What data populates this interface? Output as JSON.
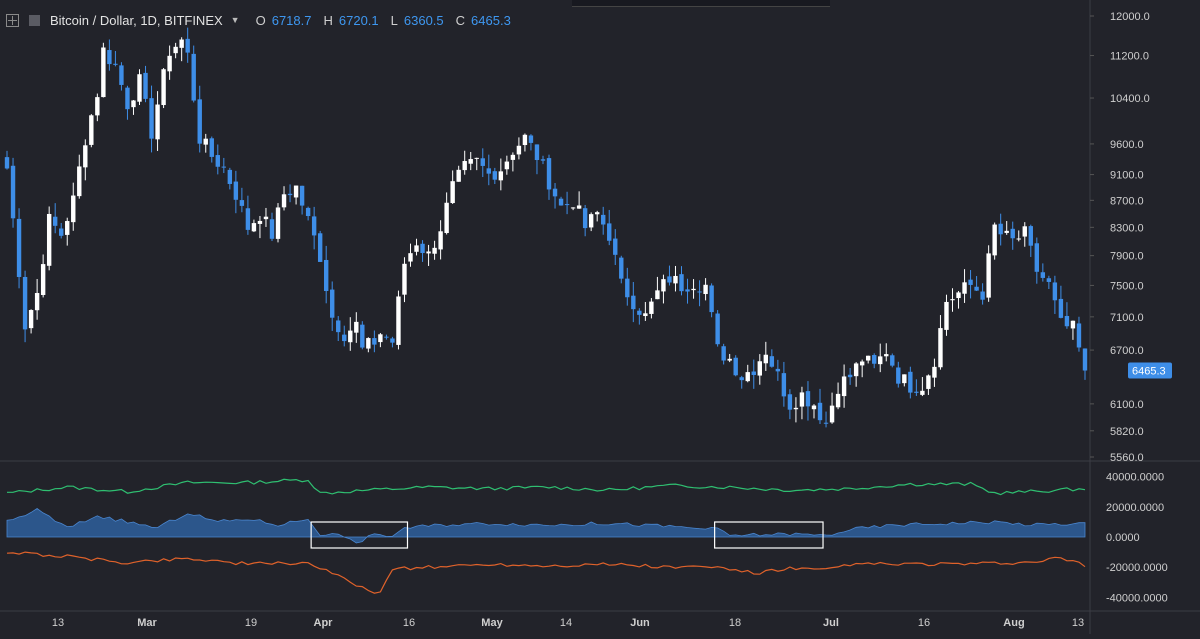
{
  "legend": {
    "symbol": "Bitcoin / Dollar, 1D, BITFINEX",
    "open_label": "O",
    "open": "6718.7",
    "high_label": "H",
    "high": "6720.1",
    "low_label": "L",
    "low": "6360.5",
    "close_label": "C",
    "close": "6465.3"
  },
  "colors": {
    "background": "#22232a",
    "up_candle": "#ffffff",
    "down_candle": "#3e8ee8",
    "area": "#2e5f9c",
    "green_line": "#2fbf71",
    "orange_line": "#e0622a",
    "text": "#d6d6d6",
    "accent": "#3e97f0"
  },
  "chart_data": [
    {
      "type": "candlestick",
      "title": "Bitcoin / Dollar, 1D, BITFINEX",
      "x_tick_labels": [
        "13",
        "Mar",
        "19",
        "Apr",
        "16",
        "May",
        "14",
        "Jun",
        "18",
        "Jul",
        "16",
        "Aug",
        "13"
      ],
      "y_ticks": [
        12000.0,
        11200.0,
        10400.0,
        9600.0,
        9100.0,
        8700.0,
        8300.0,
        7900.0,
        7500.0,
        7100.0,
        6700.0,
        6100.0,
        5820.0,
        5560.0
      ],
      "y_tick_labels": [
        "12000.0",
        "11200.0",
        "10400.0",
        "9600.0",
        "9100.0",
        "8700.0",
        "8300.0",
        "7900.0",
        "7500.0",
        "7100.0",
        "6700.0",
        "6100.0",
        "5820.0",
        "5560.0"
      ],
      "ylim": [
        5560,
        12000
      ],
      "y_scale": "log",
      "last_price_label": "6465.3",
      "keypoints": [
        {
          "day": 0,
          "close": 9200
        },
        {
          "day": 2,
          "close": 7700
        },
        {
          "day": 3,
          "close": 7000
        },
        {
          "day": 5,
          "close": 7400
        },
        {
          "day": 7,
          "close": 8400
        },
        {
          "day": 9,
          "close": 8200
        },
        {
          "day": 11,
          "close": 8700
        },
        {
          "day": 13,
          "close": 9700
        },
        {
          "day": 15,
          "close": 10500
        },
        {
          "day": 16,
          "close": 11300
        },
        {
          "day": 18,
          "close": 11000
        },
        {
          "day": 20,
          "close": 10300
        },
        {
          "day": 22,
          "close": 10700
        },
        {
          "day": 24,
          "close": 9800
        },
        {
          "day": 25,
          "close": 10300
        },
        {
          "day": 27,
          "close": 11300
        },
        {
          "day": 29,
          "close": 11500
        },
        {
          "day": 30,
          "close": 11200
        },
        {
          "day": 32,
          "close": 9700
        },
        {
          "day": 34,
          "close": 9400
        },
        {
          "day": 36,
          "close": 9200
        },
        {
          "day": 38,
          "close": 8800
        },
        {
          "day": 40,
          "close": 8300
        },
        {
          "day": 42,
          "close": 8500
        },
        {
          "day": 44,
          "close": 8200
        },
        {
          "day": 46,
          "close": 8800
        },
        {
          "day": 48,
          "close": 8900
        },
        {
          "day": 50,
          "close": 8400
        },
        {
          "day": 52,
          "close": 7900
        },
        {
          "day": 54,
          "close": 7100
        },
        {
          "day": 56,
          "close": 6900
        },
        {
          "day": 58,
          "close": 7000
        },
        {
          "day": 59,
          "close": 6700
        },
        {
          "day": 61,
          "close": 6800
        },
        {
          "day": 62,
          "close": 6900
        },
        {
          "day": 64,
          "close": 6800
        },
        {
          "day": 66,
          "close": 7800
        },
        {
          "day": 68,
          "close": 8100
        },
        {
          "day": 70,
          "close": 7900
        },
        {
          "day": 72,
          "close": 8300
        },
        {
          "day": 74,
          "close": 8900
        },
        {
          "day": 76,
          "close": 9200
        },
        {
          "day": 78,
          "close": 9300
        },
        {
          "day": 80,
          "close": 9100
        },
        {
          "day": 82,
          "close": 9200
        },
        {
          "day": 84,
          "close": 9500
        },
        {
          "day": 86,
          "close": 9700
        },
        {
          "day": 88,
          "close": 9400
        },
        {
          "day": 90,
          "close": 9000
        },
        {
          "day": 92,
          "close": 8600
        },
        {
          "day": 94,
          "close": 8700
        },
        {
          "day": 96,
          "close": 8300
        },
        {
          "day": 98,
          "close": 8500
        },
        {
          "day": 100,
          "close": 8200
        },
        {
          "day": 102,
          "close": 7500
        },
        {
          "day": 104,
          "close": 7300
        },
        {
          "day": 106,
          "close": 7100
        },
        {
          "day": 108,
          "close": 7400
        },
        {
          "day": 110,
          "close": 7600
        },
        {
          "day": 112,
          "close": 7500
        },
        {
          "day": 114,
          "close": 7550
        },
        {
          "day": 116,
          "close": 7500
        },
        {
          "day": 118,
          "close": 6700
        },
        {
          "day": 120,
          "close": 6600
        },
        {
          "day": 122,
          "close": 6400
        },
        {
          "day": 124,
          "close": 6500
        },
        {
          "day": 126,
          "close": 6700
        },
        {
          "day": 128,
          "close": 6400
        },
        {
          "day": 130,
          "close": 6100
        },
        {
          "day": 132,
          "close": 6200
        },
        {
          "day": 134,
          "close": 6100
        },
        {
          "day": 136,
          "close": 5900
        },
        {
          "day": 138,
          "close": 6300
        },
        {
          "day": 140,
          "close": 6400
        },
        {
          "day": 142,
          "close": 6600
        },
        {
          "day": 144,
          "close": 6500
        },
        {
          "day": 146,
          "close": 6700
        },
        {
          "day": 148,
          "close": 6400
        },
        {
          "day": 150,
          "close": 6300
        },
        {
          "day": 152,
          "close": 6300
        },
        {
          "day": 154,
          "close": 6600
        },
        {
          "day": 156,
          "close": 7300
        },
        {
          "day": 158,
          "close": 7400
        },
        {
          "day": 160,
          "close": 7500
        },
        {
          "day": 162,
          "close": 7400
        },
        {
          "day": 164,
          "close": 8300
        },
        {
          "day": 165,
          "close": 8200
        },
        {
          "day": 167,
          "close": 8100
        },
        {
          "day": 169,
          "close": 8200
        },
        {
          "day": 171,
          "close": 7700
        },
        {
          "day": 173,
          "close": 7500
        },
        {
          "day": 175,
          "close": 7000
        },
        {
          "day": 177,
          "close": 6950
        },
        {
          "day": 179,
          "close": 6465.3
        }
      ]
    },
    {
      "type": "area",
      "title": "",
      "y_tick_labels": [
        "40000.0000",
        "20000.0000",
        "0.0000",
        "-20000.0000",
        "-40000.0000"
      ],
      "ylim": [
        -45000,
        45000
      ],
      "series": [
        {
          "style": "line",
          "color": "#2fbf71",
          "keypoints": [
            [
              0,
              29000
            ],
            [
              10,
              33000
            ],
            [
              20,
              30000
            ],
            [
              30,
              36000
            ],
            [
              40,
              36000
            ],
            [
              50,
              38000
            ],
            [
              52,
              29000
            ],
            [
              60,
              31000
            ],
            [
              70,
              33000
            ],
            [
              80,
              32000
            ],
            [
              90,
              33000
            ],
            [
              100,
              31000
            ],
            [
              110,
              34000
            ],
            [
              120,
              33000
            ],
            [
              130,
              31000
            ],
            [
              140,
              32000
            ],
            [
              150,
              35000
            ],
            [
              160,
              35000
            ],
            [
              164,
              29000
            ],
            [
              170,
              30000
            ],
            [
              179,
              32000
            ]
          ]
        },
        {
          "style": "area",
          "color": "#2e5f9c",
          "keypoints": [
            [
              0,
              10000
            ],
            [
              5,
              18000
            ],
            [
              10,
              6000
            ],
            [
              15,
              14000
            ],
            [
              20,
              10000
            ],
            [
              25,
              6000
            ],
            [
              30,
              16000
            ],
            [
              35,
              10000
            ],
            [
              40,
              12000
            ],
            [
              45,
              8000
            ],
            [
              50,
              12000
            ],
            [
              52,
              2000
            ],
            [
              56,
              1000
            ],
            [
              58,
              -5000
            ],
            [
              60,
              1000
            ],
            [
              64,
              1000
            ],
            [
              66,
              6000
            ],
            [
              72,
              8000
            ],
            [
              80,
              9000
            ],
            [
              90,
              8000
            ],
            [
              100,
              9000
            ],
            [
              110,
              7000
            ],
            [
              118,
              5000
            ],
            [
              120,
              1000
            ],
            [
              130,
              2000
            ],
            [
              136,
              1000
            ],
            [
              140,
              5000
            ],
            [
              148,
              8000
            ],
            [
              156,
              9000
            ],
            [
              164,
              10000
            ],
            [
              170,
              8000
            ],
            [
              179,
              9000
            ]
          ]
        },
        {
          "style": "line",
          "color": "#e0622a",
          "keypoints": [
            [
              0,
              -10000
            ],
            [
              10,
              -13000
            ],
            [
              20,
              -17000
            ],
            [
              30,
              -14000
            ],
            [
              40,
              -18000
            ],
            [
              50,
              -17000
            ],
            [
              56,
              -28000
            ],
            [
              60,
              -35000
            ],
            [
              62,
              -37000
            ],
            [
              64,
              -21000
            ],
            [
              70,
              -20000
            ],
            [
              80,
              -18000
            ],
            [
              90,
              -19000
            ],
            [
              100,
              -18000
            ],
            [
              110,
              -20000
            ],
            [
              118,
              -20000
            ],
            [
              124,
              -24000
            ],
            [
              130,
              -21000
            ],
            [
              136,
              -22000
            ],
            [
              140,
              -18000
            ],
            [
              150,
              -18000
            ],
            [
              160,
              -18000
            ],
            [
              170,
              -17000
            ],
            [
              175,
              -14000
            ],
            [
              179,
              -19000
            ]
          ]
        }
      ],
      "highlight_boxes": [
        {
          "start_day": 51,
          "end_day": 66
        },
        {
          "start_day": 118,
          "end_day": 135
        }
      ]
    }
  ]
}
